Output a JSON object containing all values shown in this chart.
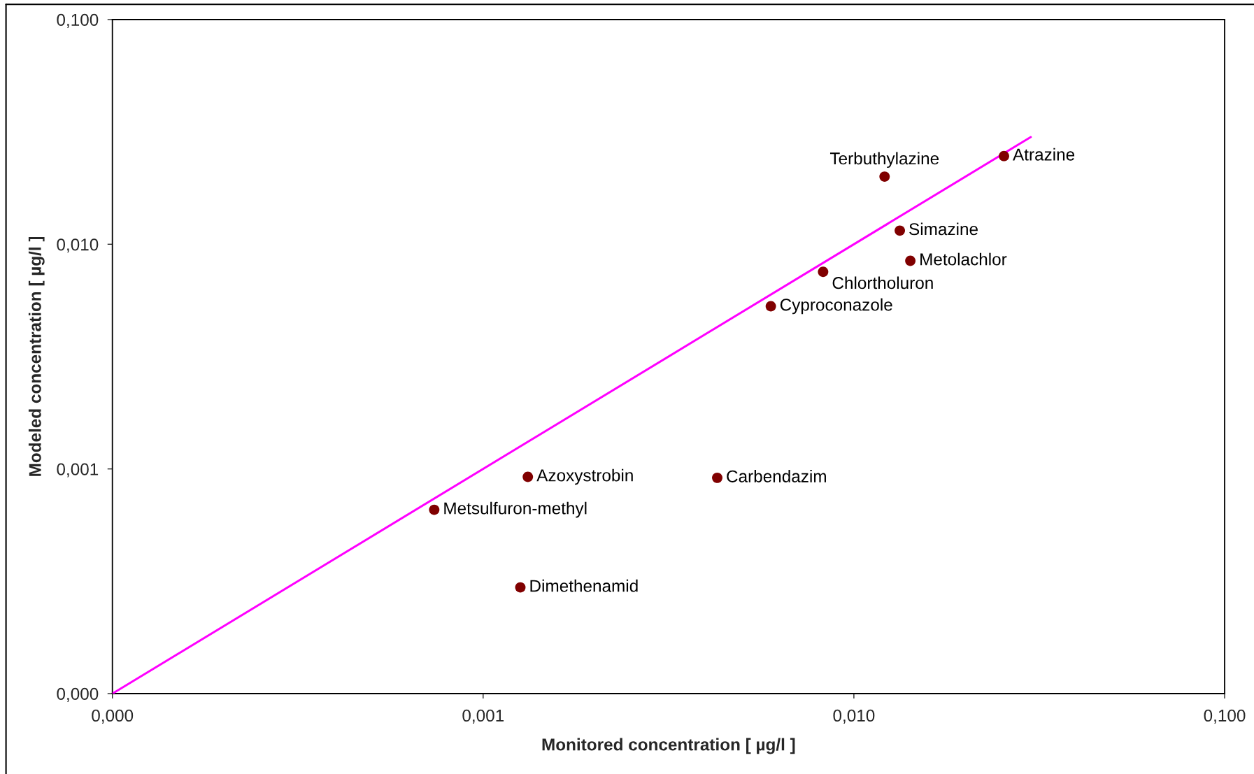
{
  "chart_data": {
    "type": "scatter",
    "xlabel": "Monitored concentration [ µg/l ]",
    "ylabel": "Modeled concentration [ µg/l ]",
    "log": "xy",
    "xlim": [
      0.0001,
      0.1
    ],
    "ylim": [
      0.0001,
      0.1
    ],
    "xticks": [
      {
        "value": 0.0001,
        "label": "0,000"
      },
      {
        "value": 0.001,
        "label": "0,001"
      },
      {
        "value": 0.01,
        "label": "0,010"
      },
      {
        "value": 0.1,
        "label": "0,100"
      }
    ],
    "yticks": [
      {
        "value": 0.0001,
        "label": "0,000"
      },
      {
        "value": 0.001,
        "label": "0,001"
      },
      {
        "value": 0.01,
        "label": "0,010"
      },
      {
        "value": 0.1,
        "label": "0,100"
      }
    ],
    "marker": "circle",
    "series": [
      {
        "color": "#800000",
        "x": [
          0.0254,
          0.0121,
          0.0133,
          0.0142,
          0.00826,
          0.00597,
          0.00428,
          0.00132,
          0.000738,
          0.00126
        ],
        "values": [
          0.0247,
          0.02,
          0.0115,
          0.00844,
          0.00754,
          0.0053,
          0.000913,
          0.000922,
          0.000658,
          0.000297
        ]
      },
      {
        "type": "line",
        "color": "#ff00ff",
        "marker": "none",
        "line_style": "solid",
        "x": [
          0.0001,
          0.03
        ],
        "values": [
          0.0001,
          0.03
        ]
      }
    ],
    "annotations": [
      {
        "text": "Atrazine",
        "x": 0.0254,
        "y": 0.0247
      },
      {
        "text": "Terbuthylazine",
        "x": 0.0121,
        "y": 0.02
      },
      {
        "text": "Simazine",
        "x": 0.0133,
        "y": 0.0115
      },
      {
        "text": "Metolachlor",
        "x": 0.0142,
        "y": 0.00844
      },
      {
        "text": "Chlortholuron",
        "x": 0.00826,
        "y": 0.00754
      },
      {
        "text": "Cyproconazole",
        "x": 0.00597,
        "y": 0.0053
      },
      {
        "text": "Carbendazim",
        "x": 0.00428,
        "y": 0.000913
      },
      {
        "text": "Azoxystrobin",
        "x": 0.00132,
        "y": 0.000922
      },
      {
        "text": "Metsulfuron-methyl",
        "x": 0.000738,
        "y": 0.000658
      },
      {
        "text": "Dimethenamid",
        "x": 0.00126,
        "y": 0.000297
      }
    ]
  }
}
